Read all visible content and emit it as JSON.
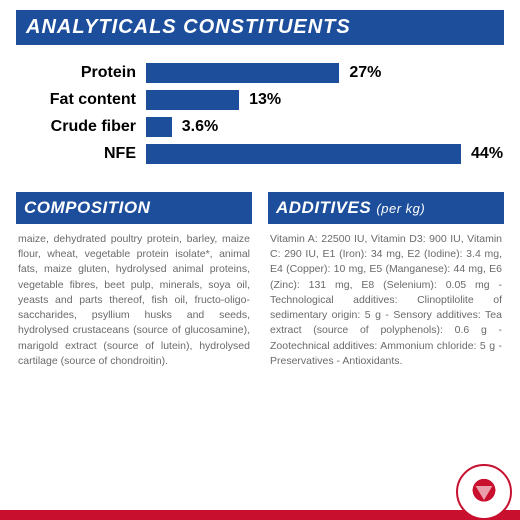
{
  "colors": {
    "primary": "#1c4e9c",
    "accent": "#c8102e",
    "text_muted": "#6a6a6a",
    "bg": "#ffffff"
  },
  "analyticals": {
    "title": "ANALYTICALS CONSTITUENTS",
    "type": "bar",
    "max_percent": 50,
    "items": [
      {
        "label": "Protein",
        "value": 27,
        "display": "27%"
      },
      {
        "label": "Fat content",
        "value": 13,
        "display": "13%"
      },
      {
        "label": "Crude fiber",
        "value": 3.6,
        "display": "3.6%"
      },
      {
        "label": "NFE",
        "value": 44,
        "display": "44%"
      }
    ],
    "bar_color": "#1c4e9c",
    "label_fontsize": 16,
    "label_weight": "bold"
  },
  "composition": {
    "title": "COMPOSITION",
    "body": "maize, dehydrated poultry protein, barley, maize flour, wheat, vegetable protein isolate*, animal fats, maize gluten, hydrolysed animal proteins, vegetable fibres, beet pulp, minerals, soya oil, yeasts and parts thereof, fish oil, fructo-oligo-saccharides, psyllium husks and seeds, hydrolysed crustaceans (source of glucosamine), marigold extract (source of lutein), hydrolysed cartilage (source of chondroitin)."
  },
  "additives": {
    "title": "ADDITIVES",
    "subtitle": "(per kg)",
    "body": "Vitamin A: 22500 IU, Vitamin D3: 900 IU, Vitamin C: 290 IU, E1 (Iron): 34 mg, E2 (Iodine): 3.4 mg, E4 (Copper): 10 mg, E5 (Manganese): 44 mg, E6 (Zinc): 131 mg, E8 (Selenium): 0.05 mg - Technological additives: Clinoptilolite of sedimentary origin: 5 g - Sensory additives: Tea extract (source of polyphenols): 0.6 g - Zootechnical additives: Ammonium chloride: 5 g - Preservatives - Antioxidants."
  },
  "logo_name": "crown-logo"
}
